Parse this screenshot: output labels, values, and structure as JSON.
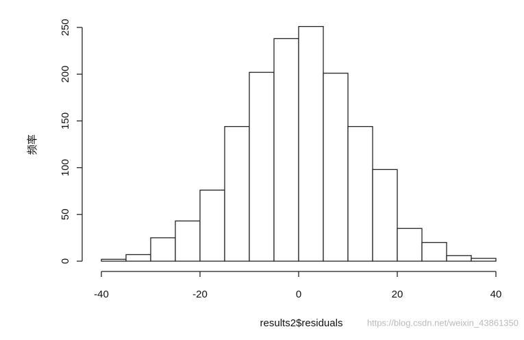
{
  "chart_data": {
    "type": "histogram",
    "xlabel": "results2$residuals",
    "ylabel": "频率",
    "bins": [
      -40,
      -35,
      -30,
      -25,
      -20,
      -15,
      -10,
      -5,
      0,
      5,
      10,
      15,
      20,
      25,
      30,
      35,
      40
    ],
    "values": [
      2,
      7,
      25,
      43,
      76,
      144,
      202,
      238,
      251,
      201,
      144,
      98,
      35,
      20,
      6,
      3
    ],
    "color": "#ffffff",
    "xlim": [
      -40,
      40
    ],
    "xticks": [
      -40,
      -20,
      0,
      20,
      40
    ],
    "ylim": [
      0,
      250
    ],
    "yticks": [
      0,
      50,
      100,
      150,
      200,
      250
    ],
    "watermark": "https://blog.csdn.net/weixin_43861350"
  }
}
